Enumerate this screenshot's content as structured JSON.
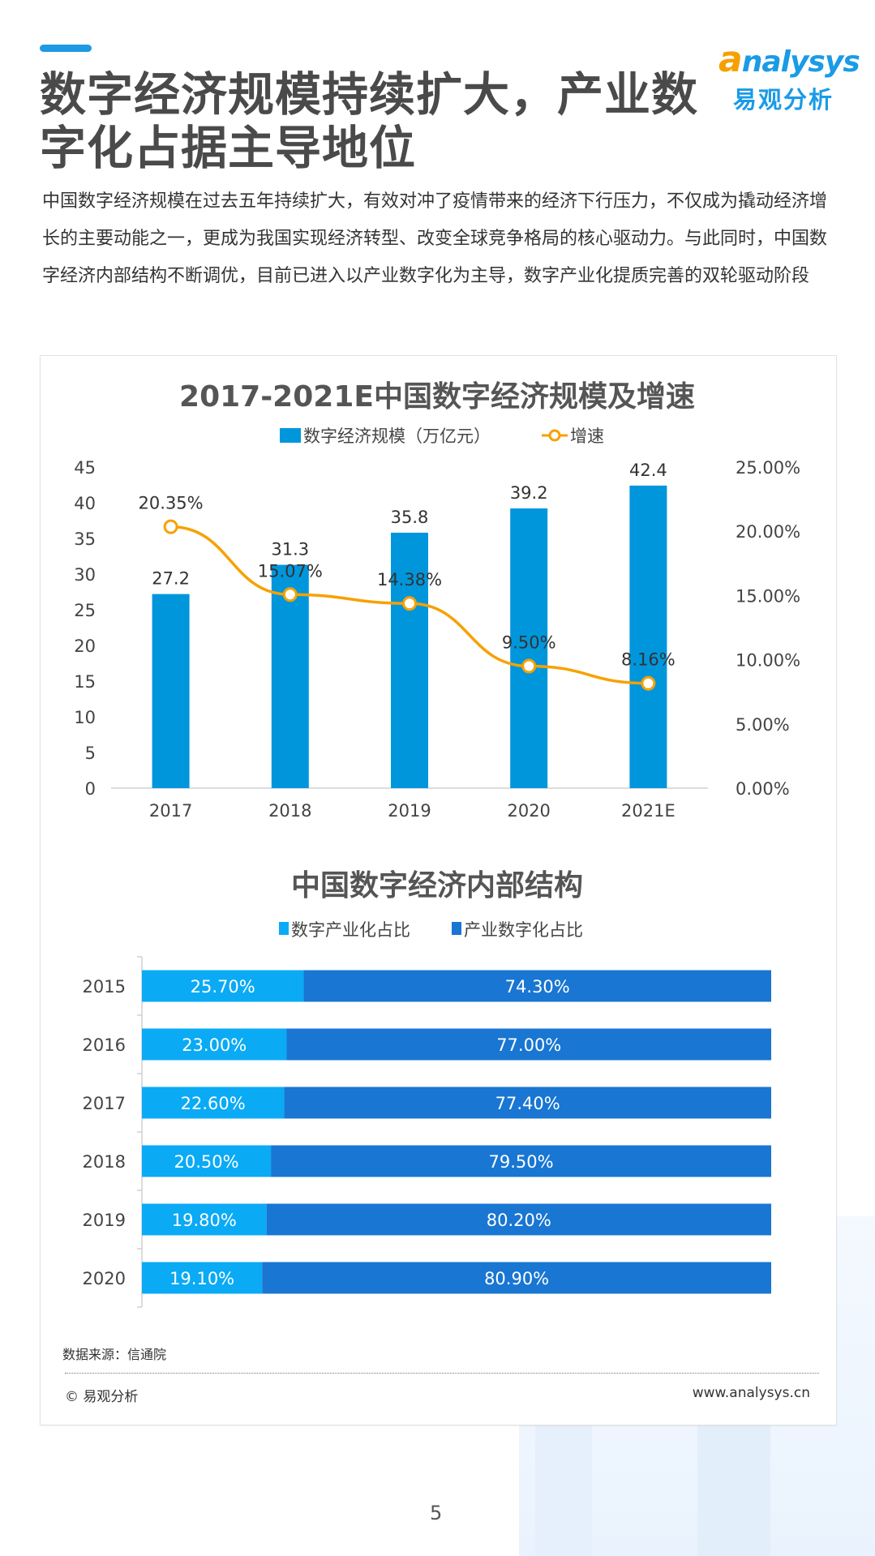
{
  "header": {
    "title": "数字经济规模持续扩大，产业数字化占据主导地位",
    "logo_en": "nalysys",
    "logo_en_initial": "a",
    "logo_cn": "易观分析",
    "intro": "中国数字经济规模在过去五年持续扩大，有效对冲了疫情带来的经济下行压力，不仅成为撬动经济增长的主要动能之一，更成为我国实现经济转型、改变全球竞争格局的核心驱动力。与此同时，中国数字经济内部结构不断调优，目前已进入以产业数字化为主导，数字产业化提质完善的双轮驱动阶段"
  },
  "colors": {
    "accent": "#1d9ae3",
    "bar": "#0096dc",
    "line": "#f7a100",
    "share_light": "#0aaaf5",
    "share_dark": "#1976d2"
  },
  "chart_data": [
    {
      "type": "bar+line",
      "title": "2017-2021E中国数字经济规模及增速",
      "categories": [
        "2017",
        "2018",
        "2019",
        "2020",
        "2021E"
      ],
      "series": [
        {
          "name": "数字经济规模（万亿元）",
          "type": "bar",
          "axis": "left",
          "values": [
            27.2,
            31.3,
            35.8,
            39.2,
            42.4
          ],
          "labels": [
            "27.2",
            "31.3",
            "35.8",
            "39.2",
            "42.4"
          ]
        },
        {
          "name": "增速",
          "type": "line",
          "axis": "right",
          "values": [
            20.35,
            15.07,
            14.38,
            9.5,
            8.16
          ],
          "labels": [
            "20.35%",
            "15.07%",
            "14.38%",
            "9.50%",
            "8.16%"
          ]
        }
      ],
      "y_left": {
        "range": [
          0,
          45
        ],
        "ticks": [
          "0",
          "5",
          "10",
          "15",
          "20",
          "25",
          "30",
          "35",
          "40",
          "45"
        ]
      },
      "y_right": {
        "range": [
          0,
          25
        ],
        "ticks": [
          "0.00%",
          "5.00%",
          "10.00%",
          "15.00%",
          "20.00%",
          "25.00%"
        ]
      },
      "legend": "top",
      "grid": false
    },
    {
      "type": "stacked-bar-horizontal",
      "title": "中国数字经济内部结构",
      "categories": [
        "2015",
        "2016",
        "2017",
        "2018",
        "2019",
        "2020"
      ],
      "series": [
        {
          "name": "数字产业化占比",
          "values": [
            25.7,
            23.0,
            22.6,
            20.5,
            19.8,
            19.1
          ],
          "labels": [
            "25.70%",
            "23.00%",
            "22.60%",
            "20.50%",
            "19.80%",
            "19.10%"
          ]
        },
        {
          "name": "产业数字化占比",
          "values": [
            74.3,
            77.0,
            77.4,
            79.5,
            80.2,
            80.9
          ],
          "labels": [
            "74.30%",
            "77.00%",
            "77.40%",
            "79.50%",
            "80.20%",
            "80.90%"
          ]
        }
      ],
      "x_range": [
        0,
        100
      ],
      "legend": "top",
      "grid": false
    }
  ],
  "footer": {
    "source": "数据来源：信通院",
    "copyright": "© 易观分析",
    "url": "www.analysys.cn",
    "page_number": "5"
  }
}
